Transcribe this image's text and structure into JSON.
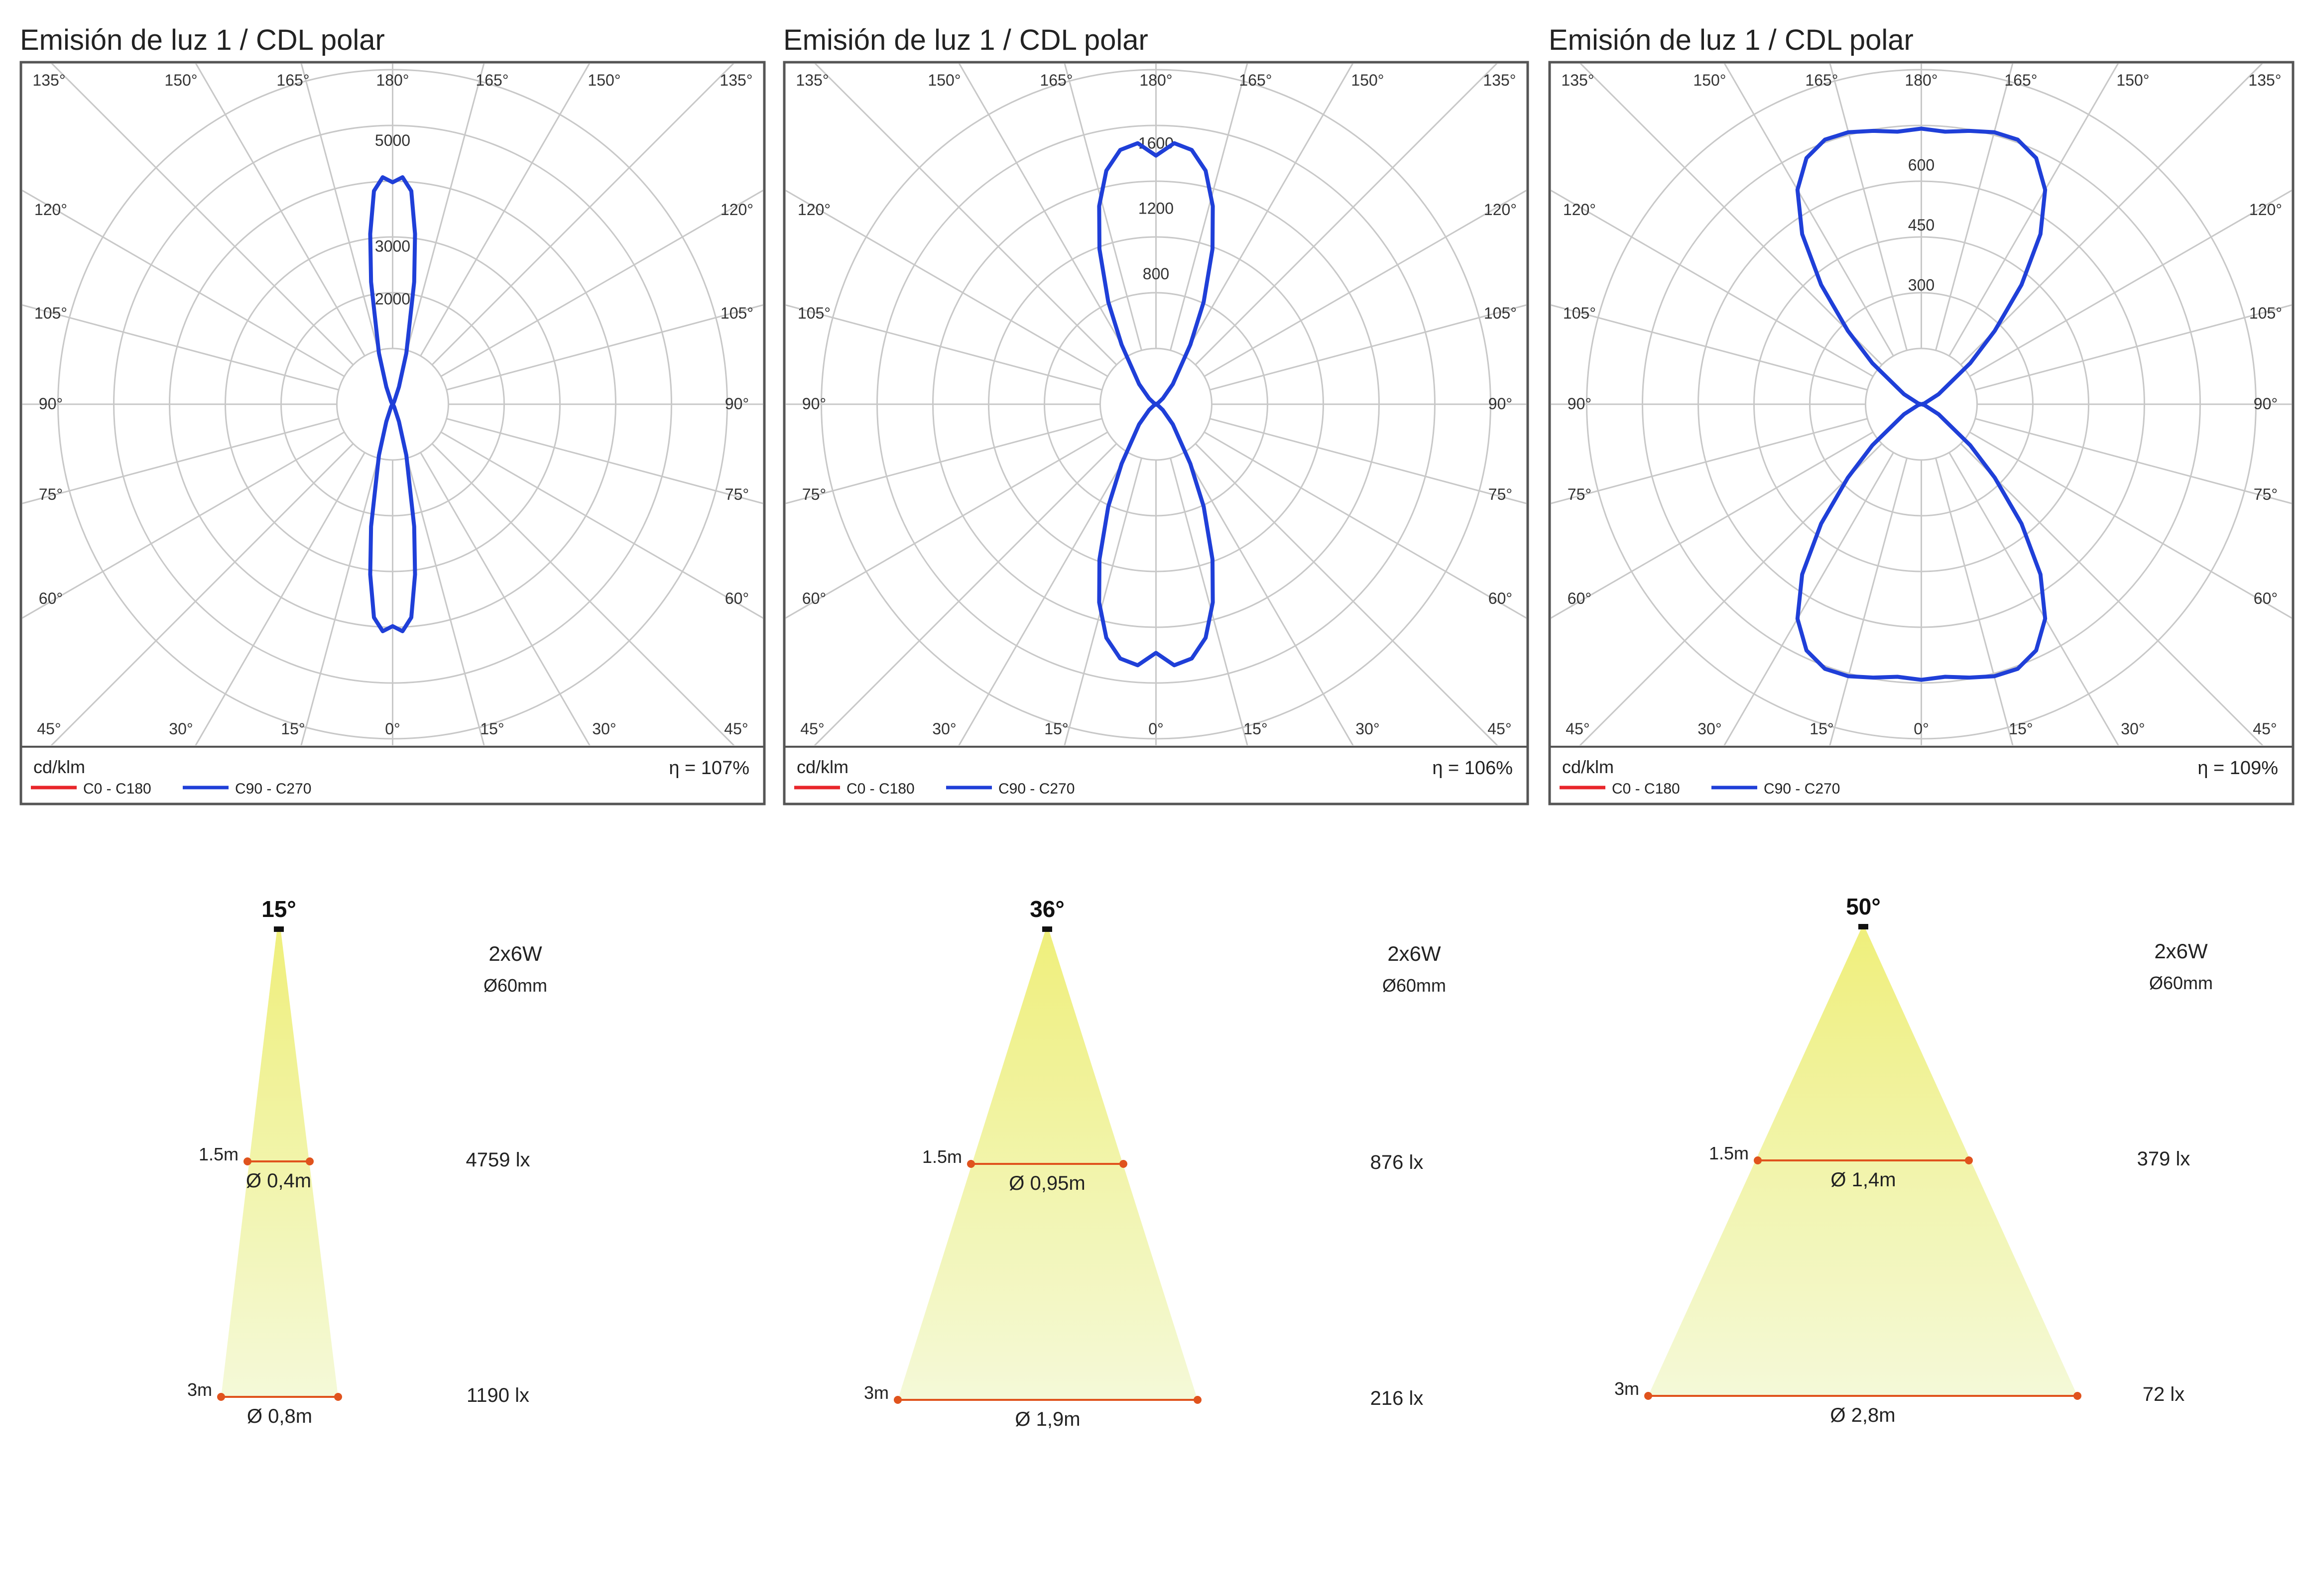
{
  "colors": {
    "c0_c180": "#e8262b",
    "c90_c270": "#1f3fd8",
    "grid": "#c8c8c8",
    "frame": "#555555",
    "beam_top": "#efef7c",
    "beam_bottom": "#f4f9d8",
    "measure": "#e0531d"
  },
  "polar_panels": [
    {
      "title": "Emisión de luz 1 / CDL polar",
      "unit": "cd/klm",
      "efficiency": "η = 107%",
      "legend": [
        {
          "label": "C0 - C180",
          "color_key": "c0_c180"
        },
        {
          "label": "C90 - C270",
          "color_key": "c90_c270"
        }
      ],
      "angle_labels_top": [
        "135°",
        "150°",
        "165°",
        "180°",
        "165°",
        "150°",
        "135°"
      ],
      "angle_labels_bottom": [
        "45°",
        "30°",
        "15°",
        "0°",
        "15°",
        "30°",
        "45°"
      ],
      "angle_labels_side": [
        "120°",
        "105°",
        "90°",
        "75°",
        "60°"
      ],
      "radial_labels": [
        "2000",
        "3000",
        "5000"
      ]
    },
    {
      "title": "Emisión de luz 1 / CDL polar",
      "unit": "cd/klm",
      "efficiency": "η = 106%",
      "legend": [
        {
          "label": "C0 - C180",
          "color_key": "c0_c180"
        },
        {
          "label": "C90 - C270",
          "color_key": "c90_c270"
        }
      ],
      "angle_labels_top": [
        "135°",
        "150°",
        "165°",
        "180°",
        "165°",
        "150°",
        "135°"
      ],
      "angle_labels_bottom": [
        "45°",
        "30°",
        "15°",
        "0°",
        "15°",
        "30°",
        "45°"
      ],
      "angle_labels_side": [
        "120°",
        "105°",
        "90°",
        "75°",
        "60°"
      ],
      "radial_labels": [
        "800",
        "1200",
        "1600"
      ]
    },
    {
      "title": "Emisión de luz 1 / CDL polar",
      "unit": "cd/klm",
      "efficiency": "η = 109%",
      "legend": [
        {
          "label": "C0 - C180",
          "color_key": "c0_c180"
        },
        {
          "label": "C90 - C270",
          "color_key": "c90_c270"
        }
      ],
      "angle_labels_top": [
        "135°",
        "150°",
        "165°",
        "180°",
        "165°",
        "150°",
        "135°"
      ],
      "angle_labels_bottom": [
        "45°",
        "30°",
        "15°",
        "0°",
        "15°",
        "30°",
        "45°"
      ],
      "angle_labels_side": [
        "120°",
        "105°",
        "90°",
        "75°",
        "60°"
      ],
      "radial_labels": [
        "300",
        "450",
        "600"
      ]
    }
  ],
  "beam_panels": [
    {
      "beam_angle": "15°",
      "power": "2x6W",
      "diameter": "Ø60mm",
      "rows": [
        {
          "height": "1.5m",
          "spot": "Ø 0,4m",
          "lux": "4759 lx"
        },
        {
          "height": "3m",
          "spot": "Ø 0,8m",
          "lux": "1190 lx"
        }
      ]
    },
    {
      "beam_angle": "36°",
      "power": "2x6W",
      "diameter": "Ø60mm",
      "rows": [
        {
          "height": "1.5m",
          "spot": "Ø 0,95m",
          "lux": "876 lx"
        },
        {
          "height": "3m",
          "spot": "Ø 1,9m",
          "lux": "216 lx"
        }
      ]
    },
    {
      "beam_angle": "50°",
      "power": "2x6W",
      "diameter": "Ø60mm",
      "rows": [
        {
          "height": "1.5m",
          "spot": "Ø 1,4m",
          "lux": "379 lx"
        },
        {
          "height": "3m",
          "spot": "Ø 2,8m",
          "lux": "72 lx"
        }
      ]
    }
  ],
  "chart_data": [
    {
      "type": "polar",
      "title": "Emisión de luz 1 / CDL polar",
      "unit": "cd/klm",
      "radial_ticks": [
        2000,
        3000,
        5000
      ],
      "rmax": 6500,
      "series": [
        {
          "name": "C90 - C270",
          "color_key": "c90_c270",
          "angles": [
            0,
            2.5,
            5,
            7.5,
            10,
            15,
            20,
            30,
            40,
            60,
            90
          ],
          "values": [
            4200,
            4300,
            4050,
            3250,
            2350,
            1000,
            350,
            60,
            20,
            5,
            0
          ]
        }
      ]
    },
    {
      "type": "polar",
      "title": "Emisión de luz 1 / CDL polar",
      "unit": "cd/klm",
      "radial_ticks": [
        800,
        1200,
        1600
      ],
      "rmax": 2100,
      "series": [
        {
          "name": "C90 - C270",
          "color_key": "c90_c270",
          "angles": [
            0,
            4,
            8,
            12,
            16,
            20,
            25,
            30,
            40,
            50,
            60,
            90
          ],
          "values": [
            1520,
            1600,
            1570,
            1460,
            1260,
            1010,
            690,
            420,
            160,
            55,
            15,
            0
          ]
        }
      ]
    },
    {
      "type": "polar",
      "title": "Emisión de luz 1 / CDL polar",
      "unit": "cd/klm",
      "radial_ticks": [
        300,
        450,
        600
      ],
      "rmax": 860,
      "series": [
        {
          "name": "C90 - C270",
          "color_key": "c90_c270",
          "angles": [
            0,
            5,
            10,
            15,
            20,
            25,
            30,
            35,
            40,
            45,
            50,
            60,
            75,
            90
          ],
          "values": [
            690,
            685,
            695,
            705,
            705,
            680,
            620,
            520,
            390,
            260,
            160,
            50,
            8,
            0
          ]
        }
      ]
    }
  ]
}
